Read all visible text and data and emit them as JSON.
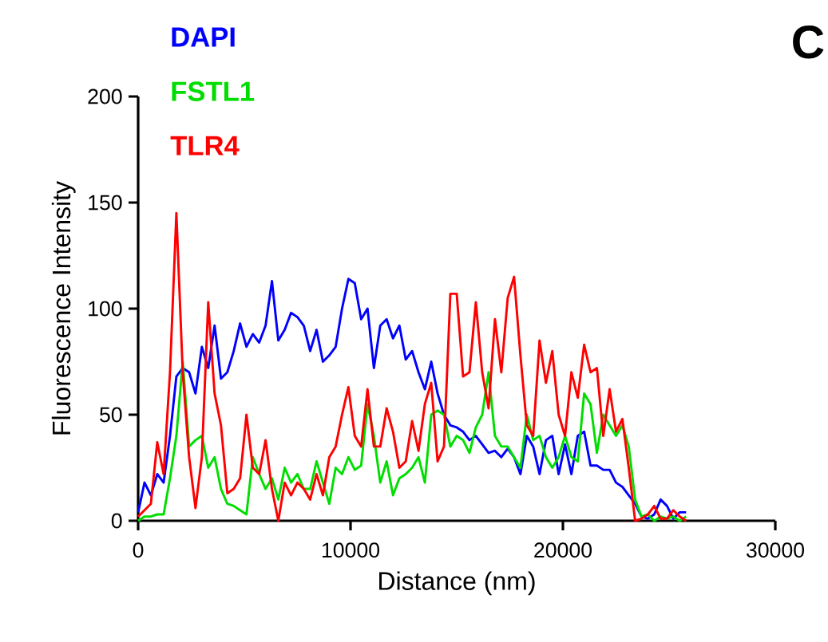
{
  "chart_data": {
    "type": "line",
    "xlabel": "Distance (nm)",
    "ylabel": "Fluorescence Intensity",
    "annotations": [
      "C"
    ],
    "x": [
      0,
      300,
      600,
      900,
      1200,
      1500,
      1800,
      2100,
      2400,
      2700,
      3000,
      3300,
      3600,
      3900,
      4200,
      4500,
      4800,
      5100,
      5400,
      5700,
      6000,
      6300,
      6600,
      6900,
      7200,
      7500,
      7800,
      8100,
      8400,
      8700,
      9000,
      9300,
      9600,
      9900,
      10200,
      10500,
      10800,
      11100,
      11400,
      11700,
      12000,
      12300,
      12600,
      12900,
      13200,
      13500,
      13800,
      14100,
      14400,
      14700,
      15000,
      15300,
      15600,
      15900,
      16200,
      16500,
      16800,
      17100,
      17400,
      17700,
      18000,
      18300,
      18600,
      18900,
      19200,
      19500,
      19800,
      20100,
      20400,
      20700,
      21000,
      21300,
      21600,
      21900,
      22200,
      22500,
      22800,
      23100,
      23400,
      23700,
      24000,
      24300,
      24600,
      24900,
      25200,
      25500,
      25800
    ],
    "series": [
      {
        "name": "DAPI",
        "color": "#0000ff",
        "values": [
          4,
          18,
          12,
          22,
          18,
          40,
          68,
          72,
          70,
          60,
          82,
          72,
          92,
          67,
          70,
          80,
          93,
          82,
          88,
          84,
          92,
          113,
          85,
          90,
          98,
          96,
          92,
          80,
          90,
          75,
          78,
          82,
          100,
          114,
          112,
          95,
          100,
          72,
          92,
          95,
          86,
          92,
          76,
          80,
          70,
          62,
          75,
          60,
          50,
          45,
          44,
          42,
          38,
          40,
          36,
          32,
          33,
          30,
          34,
          30,
          22,
          40,
          35,
          22,
          38,
          40,
          22,
          36,
          22,
          40,
          42,
          26,
          26,
          24,
          24,
          18,
          16,
          12,
          8,
          2,
          1,
          3,
          10,
          7,
          1,
          4,
          4
        ]
      },
      {
        "name": "FSTL1",
        "color": "#00dd00",
        "values": [
          0,
          2,
          2,
          3,
          3,
          20,
          40,
          75,
          35,
          38,
          40,
          25,
          30,
          15,
          8,
          7,
          5,
          3,
          30,
          22,
          15,
          20,
          10,
          25,
          18,
          22,
          15,
          15,
          28,
          18,
          8,
          25,
          22,
          30,
          24,
          26,
          55,
          40,
          18,
          28,
          12,
          20,
          22,
          25,
          30,
          18,
          50,
          52,
          50,
          35,
          40,
          38,
          32,
          44,
          50,
          70,
          40,
          35,
          35,
          30,
          25,
          50,
          38,
          40,
          30,
          25,
          30,
          40,
          30,
          28,
          60,
          55,
          32,
          50,
          45,
          40,
          45,
          35,
          10,
          2,
          3,
          0,
          2,
          1,
          2,
          0,
          2
        ]
      },
      {
        "name": "TLR4",
        "color": "#ff0000",
        "values": [
          2,
          5,
          8,
          37,
          22,
          70,
          145,
          70,
          30,
          6,
          30,
          103,
          60,
          45,
          13,
          15,
          20,
          50,
          25,
          22,
          38,
          15,
          0,
          18,
          12,
          18,
          15,
          10,
          22,
          12,
          30,
          35,
          50,
          63,
          40,
          35,
          62,
          35,
          35,
          53,
          42,
          25,
          28,
          47,
          33,
          55,
          65,
          28,
          35,
          107,
          107,
          68,
          70,
          103,
          70,
          53,
          95,
          70,
          105,
          115,
          78,
          45,
          40,
          85,
          65,
          80,
          50,
          40,
          70,
          58,
          83,
          70,
          72,
          40,
          62,
          42,
          48,
          25,
          0,
          1,
          3,
          7,
          1,
          1,
          5,
          2,
          0
        ]
      }
    ],
    "xlim": [
      0,
      30000
    ],
    "xticks": [
      0,
      10000,
      20000,
      30000
    ],
    "ylim": [
      0,
      200
    ],
    "yticks": [
      0,
      50,
      100,
      150,
      200
    ],
    "legend": "top left",
    "marker": "none",
    "line_style": "solid"
  }
}
